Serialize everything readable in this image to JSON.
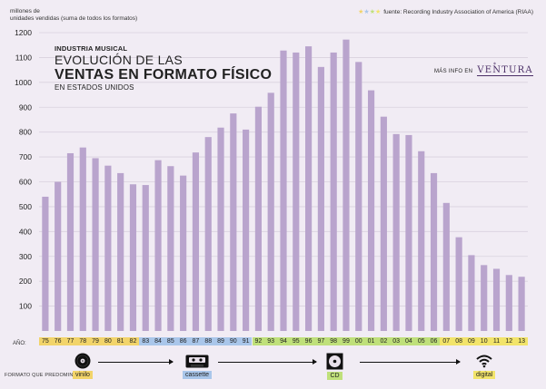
{
  "header": {
    "ylabel_line1": "millones de",
    "ylabel_line2": "unidades vendidas (suma de todos los formatos)",
    "source_dots": "★ ★ ★ ★",
    "source": "fuente: Recording Industry Association of America (RIAA)"
  },
  "title": {
    "kicker": "INDUSTRIA MUSICAL",
    "line1": "EVOLUCIÓN DE LAS",
    "line2": "VENTAS EN FORMATO FÍSICO",
    "subtitle": "EN ESTADOS UNIDOS"
  },
  "more_info": {
    "label": "MÁS INFO EN",
    "brand": "VENTURA",
    "star": "⁎"
  },
  "year_axis_label": "AÑO:",
  "formats": {
    "label": "FORMATO QUE PREDOMINA:",
    "items": [
      {
        "name": "vinilo",
        "icon": "vinyl-record-icon",
        "color": "#f2d46a"
      },
      {
        "name": "cassette",
        "icon": "cassette-tape-icon",
        "color": "#a9c6ea"
      },
      {
        "name": "CD",
        "icon": "compact-disc-icon",
        "color": "#bfe07a"
      },
      {
        "name": "digital",
        "icon": "wifi-icon",
        "color": "#f2e46a"
      }
    ]
  },
  "colors": {
    "bar": "#b9a4cd",
    "vinyl": "#f2d46a",
    "cassette": "#a9c6ea",
    "cd": "#bfe07a",
    "digital": "#f2e46a"
  },
  "chart_data": {
    "type": "bar",
    "ylim": [
      0,
      1200
    ],
    "yticks": [
      100,
      200,
      300,
      400,
      500,
      600,
      700,
      800,
      900,
      1000,
      1100,
      1200
    ],
    "grid": true,
    "categories": [
      "75",
      "76",
      "77",
      "78",
      "79",
      "80",
      "81",
      "82",
      "83",
      "84",
      "85",
      "86",
      "87",
      "88",
      "89",
      "90",
      "91",
      "92",
      "93",
      "94",
      "95",
      "96",
      "97",
      "98",
      "99",
      "00",
      "01",
      "02",
      "03",
      "04",
      "05",
      "06",
      "07",
      "08",
      "09",
      "10",
      "11",
      "12",
      "13"
    ],
    "values": [
      540,
      600,
      715,
      738,
      695,
      665,
      635,
      590,
      587,
      687,
      663,
      625,
      718,
      780,
      818,
      875,
      810,
      902,
      958,
      1128,
      1120,
      1145,
      1062,
      1120,
      1172,
      1082,
      968,
      862,
      792,
      788,
      723,
      635,
      515,
      377,
      305,
      265,
      250,
      225,
      218
    ],
    "predominant_format": [
      "vinyl",
      "vinyl",
      "vinyl",
      "vinyl",
      "vinyl",
      "vinyl",
      "vinyl",
      "vinyl",
      "cassette",
      "cassette",
      "cassette",
      "cassette",
      "cassette",
      "cassette",
      "cassette",
      "cassette",
      "cassette",
      "cd",
      "cd",
      "cd",
      "cd",
      "cd",
      "cd",
      "cd",
      "cd",
      "cd",
      "cd",
      "cd",
      "cd",
      "cd",
      "cd",
      "cd",
      "digital",
      "digital",
      "digital",
      "digital",
      "digital",
      "digital",
      "digital"
    ]
  }
}
